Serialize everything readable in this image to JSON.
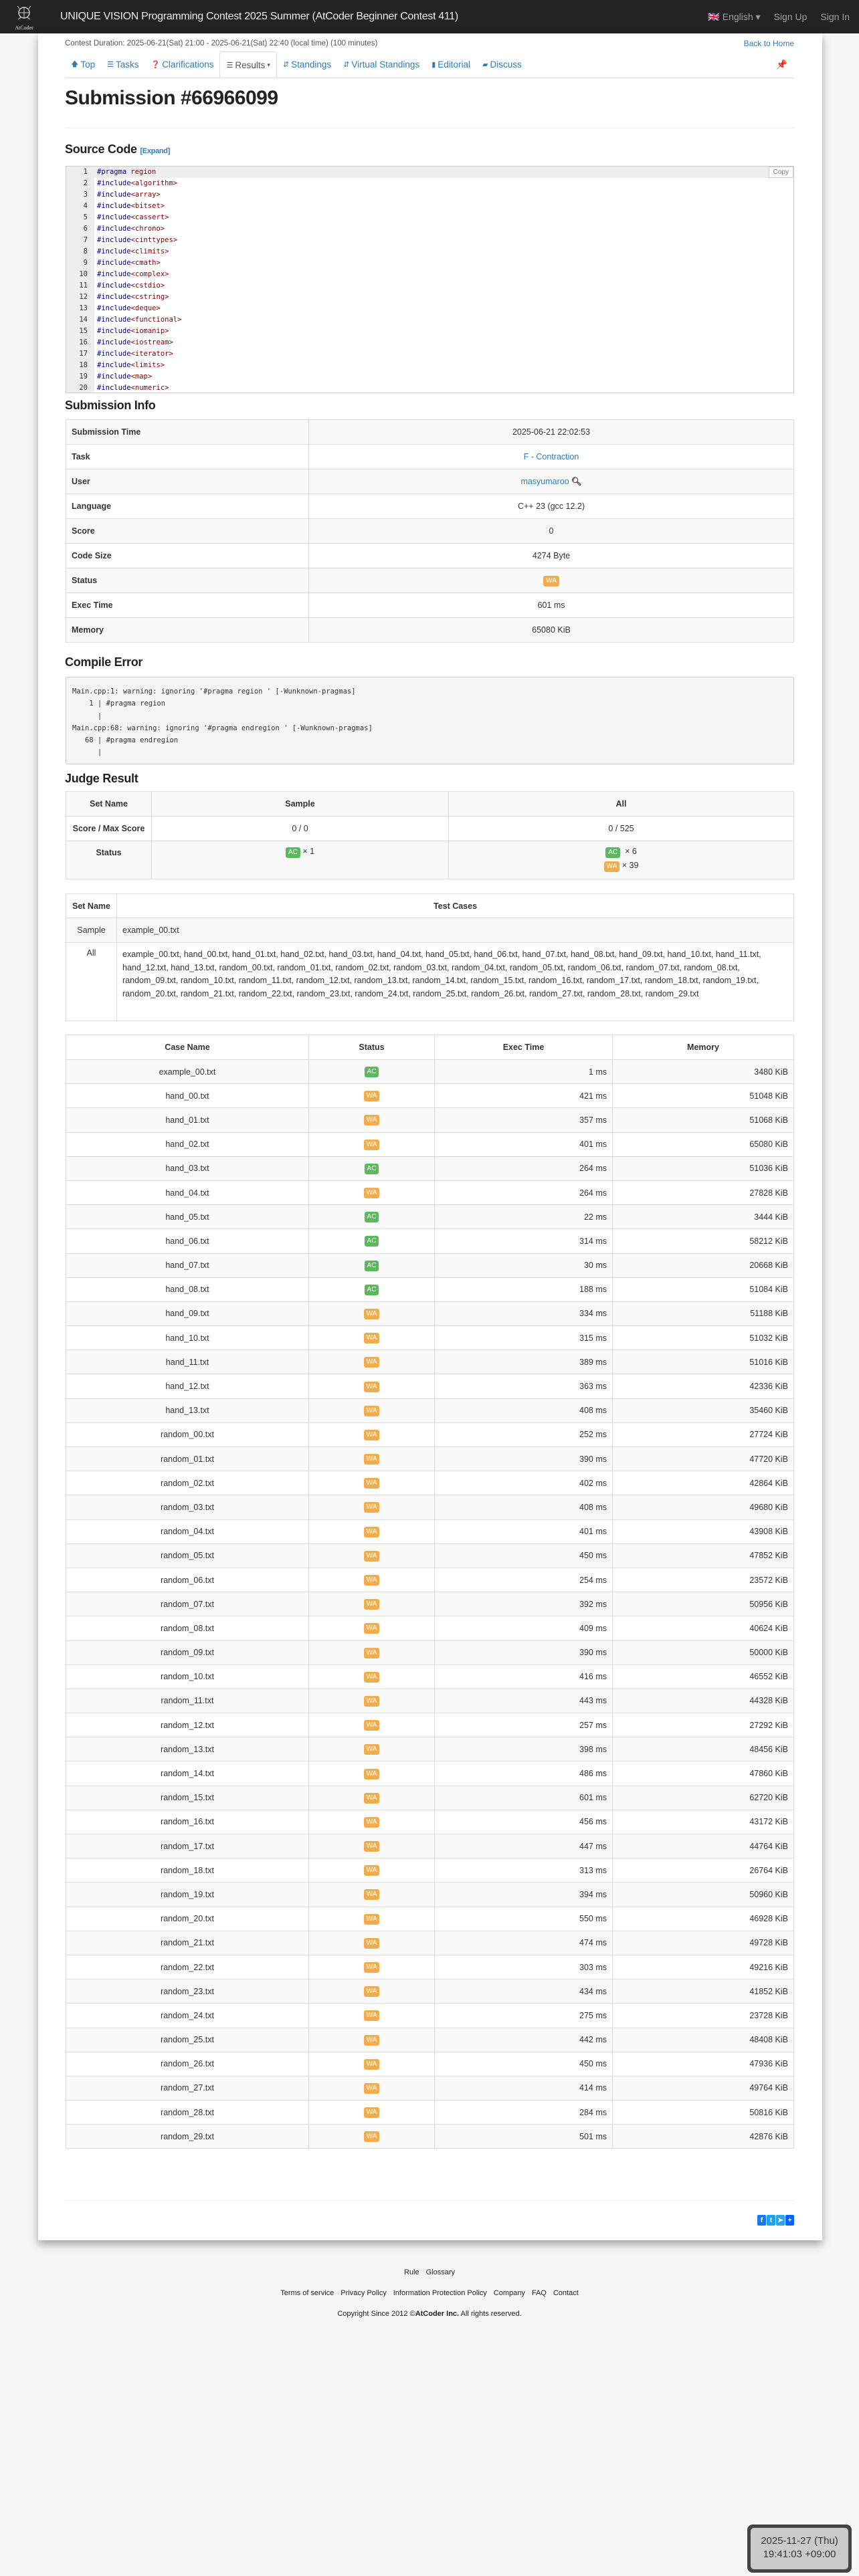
{
  "navbar": {
    "logo_text": "AtCoder",
    "title": "UNIQUE VISION Programming Contest 2025 Summer (AtCoder Beginner Contest 411)",
    "language": "English",
    "sign_up": "Sign Up",
    "sign_in": "Sign In"
  },
  "contest": {
    "duration": "Contest Duration: 2025-06-21(Sat) 21:00 - 2025-06-21(Sat) 22:40 (local time) (100 minutes)",
    "back_home": "Back to Home"
  },
  "tabs": [
    {
      "label": "Top",
      "icon": "arrow-up-icon"
    },
    {
      "label": "Tasks",
      "icon": "tasks-icon"
    },
    {
      "label": "Clarifications",
      "icon": "question-icon"
    },
    {
      "label": "Results",
      "icon": "list-icon",
      "active": true
    },
    {
      "label": "Standings",
      "icon": "sort-icon"
    },
    {
      "label": "Virtual Standings",
      "icon": "sort-icon"
    },
    {
      "label": "Editorial",
      "icon": "book-icon"
    },
    {
      "label": "Discuss",
      "icon": "comment-icon"
    }
  ],
  "page_title": "Submission #66966099",
  "source": {
    "heading": "Source Code",
    "expand": "[Expand]",
    "copy": "Copy",
    "lines": [
      [
        "#pragma",
        "region"
      ],
      [
        "#include",
        "<algorithm>"
      ],
      [
        "#include",
        "<array>"
      ],
      [
        "#include",
        "<bitset>"
      ],
      [
        "#include",
        "<cassert>"
      ],
      [
        "#include",
        "<chrono>"
      ],
      [
        "#include",
        "<cinttypes>"
      ],
      [
        "#include",
        "<climits>"
      ],
      [
        "#include",
        "<cmath>"
      ],
      [
        "#include",
        "<complex>"
      ],
      [
        "#include",
        "<cstdio>"
      ],
      [
        "#include",
        "<cstring>"
      ],
      [
        "#include",
        "<deque>"
      ],
      [
        "#include",
        "<functional>"
      ],
      [
        "#include",
        "<iomanip>"
      ],
      [
        "#include",
        "<iostream>"
      ],
      [
        "#include",
        "<iterator>"
      ],
      [
        "#include",
        "<limits>"
      ],
      [
        "#include",
        "<map>"
      ],
      [
        "#include",
        "<numeric>"
      ]
    ]
  },
  "info": {
    "heading": "Submission Info",
    "rows": [
      [
        "Submission Time",
        "2025-06-21 22:02:53"
      ],
      [
        "Task",
        "F - Contraction"
      ],
      [
        "User",
        "masyumaroo"
      ],
      [
        "Language",
        "C++ 23 (gcc 12.2)"
      ],
      [
        "Score",
        "0"
      ],
      [
        "Code Size",
        "4274 Byte"
      ],
      [
        "Status",
        "WA"
      ],
      [
        "Exec Time",
        "601 ms"
      ],
      [
        "Memory",
        "65080 KiB"
      ]
    ]
  },
  "compile": {
    "heading": "Compile Error",
    "text": "Main.cpp:1: warning: ignoring '#pragma region ' [-Wunknown-pragmas]\n    1 | #pragma region\n      |\nMain.cpp:68: warning: ignoring '#pragma endregion ' [-Wunknown-pragmas]\n   68 | #pragma endregion\n      |"
  },
  "judge": {
    "heading": "Judge Result",
    "set_name": "Set Name",
    "sample": "Sample",
    "all": "All",
    "score_label": "Score / Max Score",
    "sample_score": "0 / 0",
    "all_score": "0 / 525",
    "status_label": "Status",
    "sample_ac": "× 1",
    "all_ac": "× 6",
    "all_wa": "× 39",
    "ac": "AC",
    "wa": "WA"
  },
  "testsets": {
    "set_name": "Set Name",
    "test_cases": "Test Cases",
    "rows": [
      [
        "Sample",
        "example_00.txt"
      ],
      [
        "All",
        "example_00.txt, hand_00.txt, hand_01.txt, hand_02.txt, hand_03.txt, hand_04.txt, hand_05.txt, hand_06.txt, hand_07.txt, hand_08.txt, hand_09.txt, hand_10.txt, hand_11.txt, hand_12.txt, hand_13.txt, random_00.txt, random_01.txt, random_02.txt, random_03.txt, random_04.txt, random_05.txt, random_06.txt, random_07.txt, random_08.txt, random_09.txt, random_10.txt, random_11.txt, random_12.txt, random_13.txt, random_14.txt, random_15.txt, random_16.txt, random_17.txt, random_18.txt, random_19.txt, random_20.txt, random_21.txt, random_22.txt, random_23.txt, random_24.txt, random_25.txt, random_26.txt, random_27.txt, random_28.txt, random_29.txt"
      ]
    ]
  },
  "cases": {
    "headers": [
      "Case Name",
      "Status",
      "Exec Time",
      "Memory"
    ],
    "rows": [
      [
        "example_00.txt",
        "AC",
        "1 ms",
        "3480 KiB"
      ],
      [
        "hand_00.txt",
        "WA",
        "421 ms",
        "51048 KiB"
      ],
      [
        "hand_01.txt",
        "WA",
        "357 ms",
        "51068 KiB"
      ],
      [
        "hand_02.txt",
        "WA",
        "401 ms",
        "65080 KiB"
      ],
      [
        "hand_03.txt",
        "AC",
        "264 ms",
        "51036 KiB"
      ],
      [
        "hand_04.txt",
        "WA",
        "264 ms",
        "27828 KiB"
      ],
      [
        "hand_05.txt",
        "AC",
        "22 ms",
        "3444 KiB"
      ],
      [
        "hand_06.txt",
        "AC",
        "314 ms",
        "58212 KiB"
      ],
      [
        "hand_07.txt",
        "AC",
        "30 ms",
        "20668 KiB"
      ],
      [
        "hand_08.txt",
        "AC",
        "188 ms",
        "51084 KiB"
      ],
      [
        "hand_09.txt",
        "WA",
        "334 ms",
        "51188 KiB"
      ],
      [
        "hand_10.txt",
        "WA",
        "315 ms",
        "51032 KiB"
      ],
      [
        "hand_11.txt",
        "WA",
        "389 ms",
        "51016 KiB"
      ],
      [
        "hand_12.txt",
        "WA",
        "363 ms",
        "42336 KiB"
      ],
      [
        "hand_13.txt",
        "WA",
        "408 ms",
        "35460 KiB"
      ],
      [
        "random_00.txt",
        "WA",
        "252 ms",
        "27724 KiB"
      ],
      [
        "random_01.txt",
        "WA",
        "390 ms",
        "47720 KiB"
      ],
      [
        "random_02.txt",
        "WA",
        "402 ms",
        "42864 KiB"
      ],
      [
        "random_03.txt",
        "WA",
        "408 ms",
        "49680 KiB"
      ],
      [
        "random_04.txt",
        "WA",
        "401 ms",
        "43908 KiB"
      ],
      [
        "random_05.txt",
        "WA",
        "450 ms",
        "47852 KiB"
      ],
      [
        "random_06.txt",
        "WA",
        "254 ms",
        "23572 KiB"
      ],
      [
        "random_07.txt",
        "WA",
        "392 ms",
        "50956 KiB"
      ],
      [
        "random_08.txt",
        "WA",
        "409 ms",
        "40624 KiB"
      ],
      [
        "random_09.txt",
        "WA",
        "390 ms",
        "50000 KiB"
      ],
      [
        "random_10.txt",
        "WA",
        "416 ms",
        "46552 KiB"
      ],
      [
        "random_11.txt",
        "WA",
        "443 ms",
        "44328 KiB"
      ],
      [
        "random_12.txt",
        "WA",
        "257 ms",
        "27292 KiB"
      ],
      [
        "random_13.txt",
        "WA",
        "398 ms",
        "48456 KiB"
      ],
      [
        "random_14.txt",
        "WA",
        "486 ms",
        "47860 KiB"
      ],
      [
        "random_15.txt",
        "WA",
        "601 ms",
        "62720 KiB"
      ],
      [
        "random_16.txt",
        "WA",
        "456 ms",
        "43172 KiB"
      ],
      [
        "random_17.txt",
        "WA",
        "447 ms",
        "44764 KiB"
      ],
      [
        "random_18.txt",
        "WA",
        "313 ms",
        "26764 KiB"
      ],
      [
        "random_19.txt",
        "WA",
        "394 ms",
        "50960 KiB"
      ],
      [
        "random_20.txt",
        "WA",
        "550 ms",
        "46928 KiB"
      ],
      [
        "random_21.txt",
        "WA",
        "474 ms",
        "49728 KiB"
      ],
      [
        "random_22.txt",
        "WA",
        "303 ms",
        "49216 KiB"
      ],
      [
        "random_23.txt",
        "WA",
        "434 ms",
        "41852 KiB"
      ],
      [
        "random_24.txt",
        "WA",
        "275 ms",
        "23728 KiB"
      ],
      [
        "random_25.txt",
        "WA",
        "442 ms",
        "48408 KiB"
      ],
      [
        "random_26.txt",
        "WA",
        "450 ms",
        "47936 KiB"
      ],
      [
        "random_27.txt",
        "WA",
        "414 ms",
        "49764 KiB"
      ],
      [
        "random_28.txt",
        "WA",
        "284 ms",
        "50816 KiB"
      ],
      [
        "random_29.txt",
        "WA",
        "501 ms",
        "42876 KiB"
      ]
    ]
  },
  "share": [
    {
      "icon": "facebook-icon",
      "color": "#1877f2"
    },
    {
      "icon": "twitter-icon",
      "color": "#1da1f2"
    },
    {
      "icon": "telegram-icon",
      "color": "#2ca5e0"
    },
    {
      "icon": "share-plus-icon",
      "color": "#0166ff"
    }
  ],
  "footer": {
    "links1": [
      "Rule",
      "Glossary"
    ],
    "links2": [
      "Terms of service",
      "Privacy Policy",
      "Information Protection Policy",
      "Company",
      "FAQ",
      "Contact"
    ],
    "copyright_pre": "Copyright Since 2012 ©",
    "copyright_brand": "AtCoder Inc.",
    "copyright_post": " All rights reserved."
  },
  "clock": {
    "date": "2025-11-27 (Thu)",
    "time": "19:41:03 +09:00"
  },
  "colors": {
    "ac": "#5cb85c",
    "wa": "#f0ad4e",
    "link": "#337ab7",
    "navbar": "#222222"
  }
}
